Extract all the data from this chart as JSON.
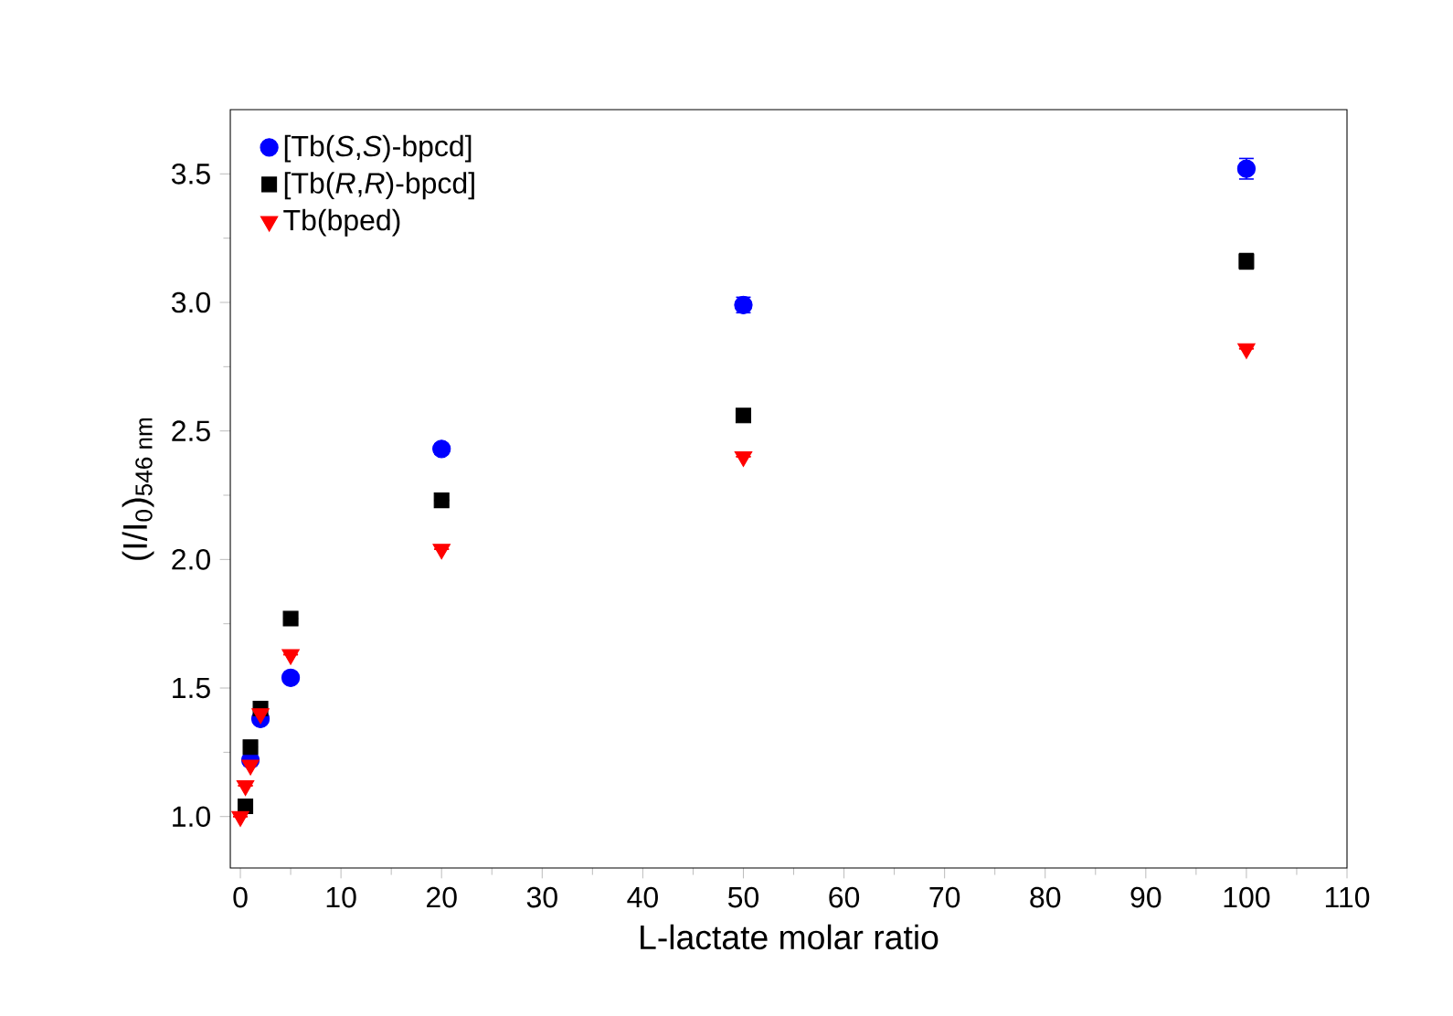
{
  "chart_data": {
    "type": "scatter",
    "xlabel": "L-lactate molar ratio",
    "ylabel": "(I/I$_{0}$)$_{546 nm}$",
    "x": [
      0,
      0.5,
      1,
      2,
      5,
      20,
      50,
      100
    ],
    "series": [
      {
        "name": "[Tb(*S*,*S*)-bpcd]",
        "color": "#0000ff",
        "marker": "circle",
        "values": [
          null,
          null,
          1.22,
          1.38,
          1.54,
          2.43,
          2.99,
          3.52
        ],
        "errors": [
          null,
          null,
          null,
          null,
          null,
          0.02,
          0.03,
          0.04
        ]
      },
      {
        "name": "[Tb(*R*,*R*)-bpcd]",
        "color": "#000000",
        "marker": "square",
        "values": [
          null,
          1.04,
          1.27,
          1.42,
          1.77,
          2.23,
          2.56,
          3.16
        ],
        "errors": [
          null,
          null,
          null,
          null,
          null,
          null,
          0.02,
          0.03
        ]
      },
      {
        "name": "Tb(bped)",
        "color": "#ff0000",
        "marker": "triangle",
        "values": [
          1.0,
          1.12,
          1.2,
          1.4,
          1.63,
          2.04,
          2.4,
          2.82
        ],
        "errors": [
          null,
          null,
          null,
          null,
          null,
          null,
          null,
          null
        ]
      }
    ],
    "xlim": [
      -1,
      110
    ],
    "ylim": [
      0.8,
      3.75
    ],
    "xticks": [
      0,
      10,
      20,
      30,
      40,
      50,
      60,
      70,
      80,
      90,
      100,
      110
    ],
    "yticks": [
      {
        "value": 1.0,
        "label": "1.0"
      },
      {
        "value": 1.5,
        "label": "1.5"
      },
      {
        "value": 2.0,
        "label": "2.0"
      },
      {
        "value": 2.5,
        "label": "2.5"
      },
      {
        "value": 3.0,
        "label": "3.0"
      },
      {
        "value": 3.5,
        "label": "3.5"
      }
    ],
    "legend": "top left",
    "grid": false
  }
}
